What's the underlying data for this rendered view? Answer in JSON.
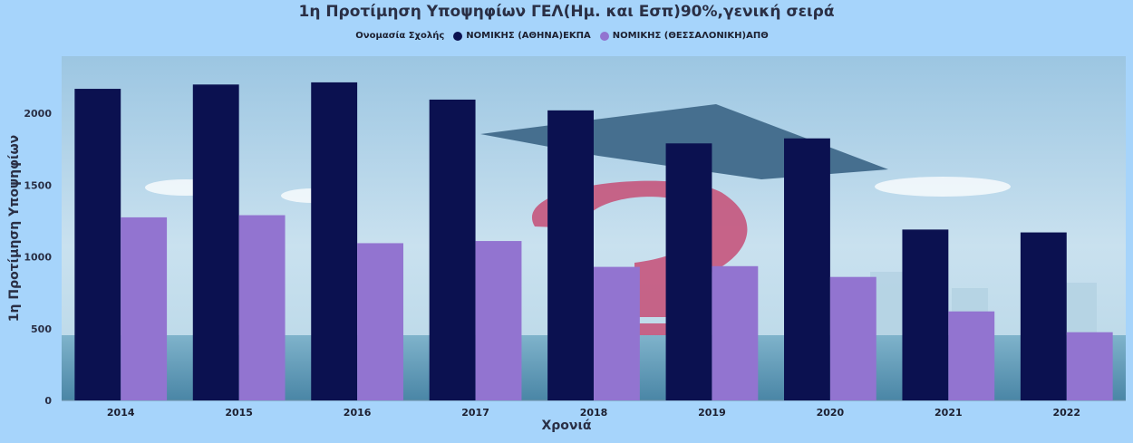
{
  "chart_data": {
    "type": "bar",
    "title": "1η Προτίμηση Υποψηφίων ΓΕΛ(Ημ. και Εσπ)90%,γενική σειρά",
    "legend_title": "Ονομασία Σχολής",
    "legend_position": "top-center",
    "xlabel": "Χρονιά",
    "ylabel": "1η Προτίμηση Υποψηφίων",
    "categories": [
      "2014",
      "2015",
      "2016",
      "2017",
      "2018",
      "2019",
      "2020",
      "2021",
      "2022"
    ],
    "ylim": [
      0,
      2400
    ],
    "yticks": [
      "0",
      "500",
      "1000",
      "1500",
      "2000"
    ],
    "grid": false,
    "series": [
      {
        "name": "ΝΟΜΙΚΗΣ (ΑΘΗΝΑ)ΕΚΠΑ",
        "color": "#0b1150",
        "values": [
          2170,
          2200,
          2215,
          2095,
          2020,
          1790,
          1825,
          1190,
          1170
        ]
      },
      {
        "name": "ΝΟΜΙΚΗΣ (ΘΕΣΣΑΛΟΝΙΚΗ)ΑΠΘ",
        "color": "#9274d0",
        "values": [
          1275,
          1290,
          1095,
          1110,
          930,
          935,
          860,
          620,
          475
        ]
      }
    ]
  }
}
